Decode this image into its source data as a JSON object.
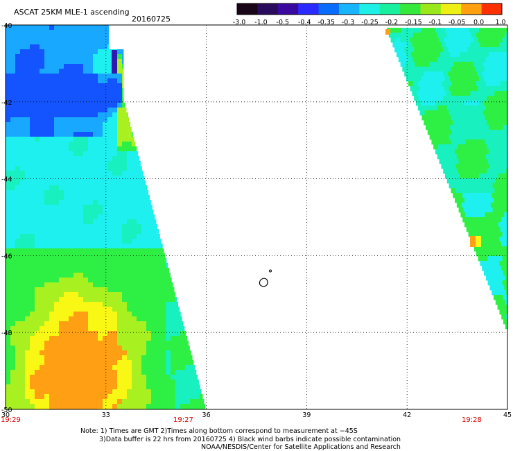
{
  "header": {
    "product": "ASCAT 25KM MLE-1 ascending",
    "date": "20160725"
  },
  "colorbar": {
    "labels": [
      "-3.0",
      "-1.0",
      "-0.5",
      "-0.4",
      "-0.35",
      "-0.3",
      "-0.25",
      "-0.2",
      "-0.15",
      "-0.1",
      "-0.05",
      "0.0",
      "1.0"
    ],
    "colors": [
      "#1a0418",
      "#2a0a5c",
      "#3a0aa0",
      "#2a2aff",
      "#0a6cff",
      "#18b4ff",
      "#1ef0e6",
      "#18f0a0",
      "#34e83c",
      "#9ae81a",
      "#eef014",
      "#ffa010",
      "#ff3000"
    ]
  },
  "map": {
    "lat_ticks": [
      "-40",
      "-42",
      "-44",
      "-46",
      "-48",
      "-50"
    ],
    "lon_ticks": [
      "30",
      "33",
      "36",
      "39",
      "42",
      "45"
    ],
    "time_labels": [
      "19:29",
      "19:27",
      "19:28"
    ],
    "time_color": "#dd0000",
    "lat_range": [
      -50,
      -40
    ],
    "lon_range": [
      30,
      45
    ]
  },
  "swath_colors": {
    "blue": "#1454ff",
    "lightblue": "#18a8ff",
    "cyan": "#1ef0f0",
    "aqua": "#18f0c0",
    "green": "#2ef044",
    "lime": "#a8f020",
    "yellow": "#f8f814",
    "orange": "#ffa014"
  },
  "footer": {
    "line1": "Note: 1) Times are GMT 2)Times along bottom correspond to measurement at −45S",
    "line2": "3)Data buffer is 22 hrs from 20160725 4) Black wind barbs indicate possible contamination",
    "line3": "NOAA/NESDIS/Center for Satellite Applications and Research"
  }
}
